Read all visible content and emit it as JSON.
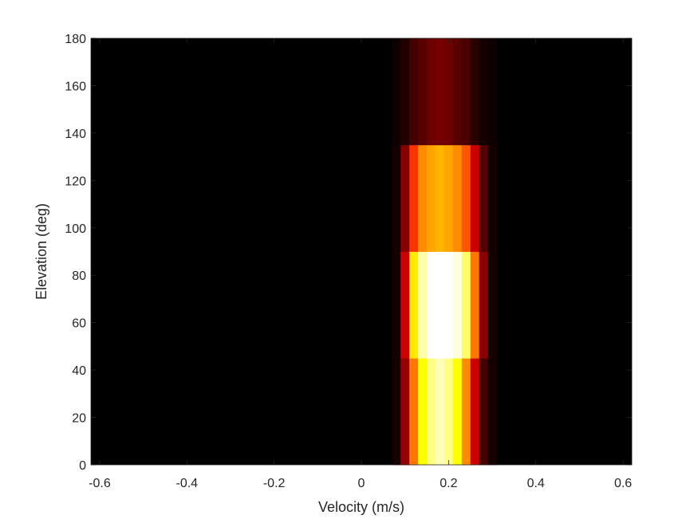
{
  "chart_data": {
    "type": "heatmap",
    "title": "",
    "xlabel": "Velocity (m/s)",
    "ylabel": "Elevation (deg)",
    "xlim": [
      -0.62,
      0.62
    ],
    "ylim": [
      0,
      180
    ],
    "x_ticks": [
      -0.6,
      -0.4,
      -0.2,
      0,
      0.2,
      0.4,
      0.6
    ],
    "x_tick_labels": [
      "-0.6",
      "-0.4",
      "-0.2",
      "0",
      "0.2",
      "0.4",
      "0.6"
    ],
    "y_ticks": [
      0,
      20,
      40,
      60,
      80,
      100,
      120,
      140,
      160,
      180
    ],
    "y_tick_labels": [
      "0",
      "20",
      "40",
      "60",
      "80",
      "100",
      "120",
      "140",
      "160",
      "180"
    ],
    "colormap": "hot",
    "background_color": "#000000",
    "grid": false,
    "velocity_bins": [
      0.08,
      0.1,
      0.12,
      0.14,
      0.16,
      0.18,
      0.2,
      0.22,
      0.24,
      0.26,
      0.28,
      0.3
    ],
    "velocity_bin_width": 0.02,
    "elevation_bins": [
      {
        "range": [
          0,
          45
        ],
        "intensity": [
          0.03,
          0.22,
          0.55,
          0.75,
          0.88,
          0.93,
          0.88,
          0.75,
          0.58,
          0.3,
          0.1,
          0.03
        ]
      },
      {
        "range": [
          45,
          90
        ],
        "intensity": [
          0.03,
          0.3,
          0.72,
          0.92,
          1.0,
          1.0,
          1.0,
          0.97,
          0.85,
          0.55,
          0.2,
          0.03
        ]
      },
      {
        "range": [
          90,
          135
        ],
        "intensity": [
          0.03,
          0.2,
          0.45,
          0.58,
          0.62,
          0.64,
          0.62,
          0.58,
          0.5,
          0.3,
          0.12,
          0.03
        ]
      },
      {
        "range": [
          135,
          180
        ],
        "intensity": [
          0.02,
          0.05,
          0.1,
          0.13,
          0.16,
          0.17,
          0.16,
          0.13,
          0.11,
          0.06,
          0.03,
          0.02
        ]
      }
    ]
  }
}
